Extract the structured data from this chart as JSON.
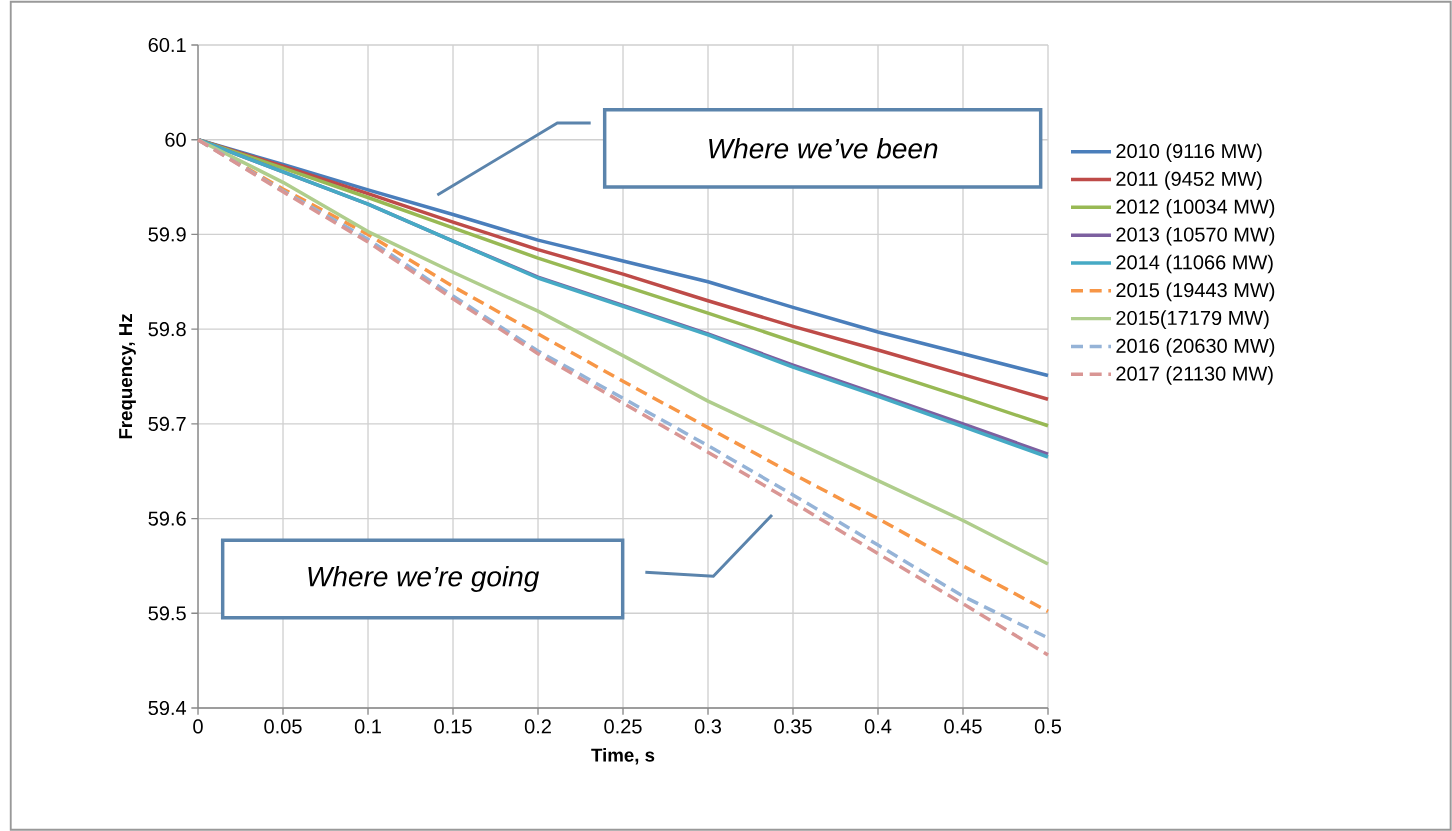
{
  "chart_data": {
    "type": "line",
    "xlabel": "Time, s",
    "ylabel": "Frequency, Hz",
    "x": [
      0,
      0.05,
      0.1,
      0.15,
      0.2,
      0.25,
      0.3,
      0.35,
      0.4,
      0.45,
      0.5
    ],
    "series": [
      {
        "name": "2010 (9116 MW)",
        "color": "#4a7ebb",
        "line_style": "solid",
        "values": [
          60,
          59.974,
          59.947,
          59.921,
          59.894,
          59.872,
          59.85,
          59.823,
          59.797,
          59.774,
          59.751
        ]
      },
      {
        "name": "2011 (9452 MW)",
        "color": "#be4b48",
        "line_style": "solid",
        "values": [
          60,
          59.972,
          59.943,
          59.913,
          59.884,
          59.858,
          59.83,
          59.803,
          59.778,
          59.752,
          59.726
        ]
      },
      {
        "name": "2012 (10034 MW)",
        "color": "#98b954",
        "line_style": "solid",
        "values": [
          60,
          59.97,
          59.939,
          59.907,
          59.875,
          59.846,
          59.817,
          59.787,
          59.757,
          59.728,
          59.698
        ]
      },
      {
        "name": "2013 (10570 MW)",
        "color": "#7d60a0",
        "line_style": "solid",
        "values": [
          60,
          59.966,
          59.932,
          59.893,
          59.855,
          59.825,
          59.795,
          59.762,
          59.731,
          59.7,
          59.668
        ]
      },
      {
        "name": "2014 (11066 MW)",
        "color": "#46aac5",
        "line_style": "solid",
        "values": [
          60,
          59.966,
          59.932,
          59.893,
          59.854,
          59.824,
          59.794,
          59.76,
          59.729,
          59.697,
          59.665
        ]
      },
      {
        "name": "2015 (19443 MW)",
        "color": "#f79646",
        "line_style": "dashed",
        "values": [
          60,
          59.948,
          59.9,
          59.845,
          59.795,
          59.745,
          59.696,
          59.647,
          59.6,
          59.55,
          59.502
        ]
      },
      {
        "name": "2015(17179 MW)",
        "color": "#afcd8c",
        "line_style": "solid",
        "values": [
          60,
          59.955,
          59.903,
          59.86,
          59.819,
          59.772,
          59.724,
          59.682,
          59.64,
          59.598,
          59.552
        ]
      },
      {
        "name": "2016 (20630 MW)",
        "color": "#95b3d7",
        "line_style": "dashed",
        "values": [
          60,
          59.946,
          59.895,
          59.835,
          59.777,
          59.727,
          59.677,
          59.625,
          59.572,
          59.518,
          59.474
        ]
      },
      {
        "name": "2017 (21130 MW)",
        "color": "#d99694",
        "line_style": "dashed",
        "values": [
          60,
          59.945,
          59.892,
          59.832,
          59.774,
          59.722,
          59.67,
          59.617,
          59.563,
          59.51,
          59.456
        ]
      }
    ],
    "xlim": [
      0,
      0.5
    ],
    "ylim": [
      59.4,
      60.1
    ],
    "xticks": [
      0,
      0.05,
      0.1,
      0.15,
      0.2,
      0.25,
      0.3,
      0.35,
      0.4,
      0.45,
      0.5
    ],
    "yticks": [
      59.4,
      59.5,
      59.6,
      59.7,
      59.8,
      59.9,
      60,
      60.1
    ],
    "grid": true,
    "legend": "right",
    "marker": "none",
    "annotations": [
      "Where we’ve been",
      "Where we’re going"
    ]
  }
}
